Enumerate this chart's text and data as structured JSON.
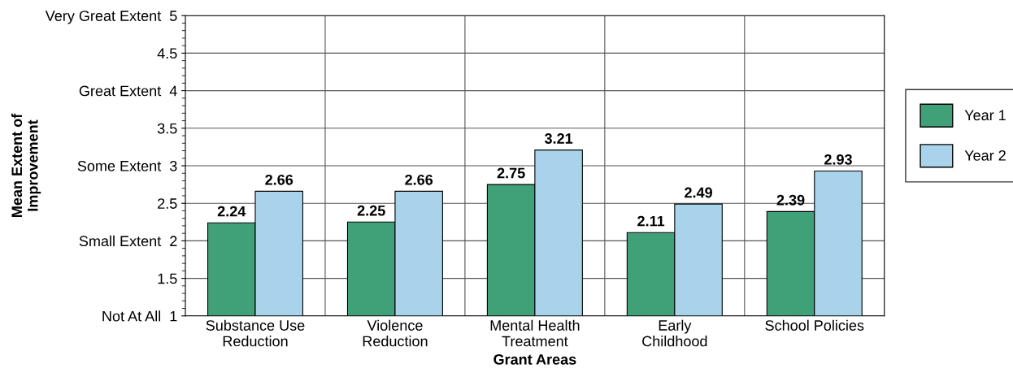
{
  "chart_data": {
    "type": "bar",
    "xlabel": "Grant Areas",
    "ylabel": "Mean Extent of\nImprovement",
    "categories": [
      "Substance Use\nReduction",
      "Violence\nReduction",
      "Mental Health\nTreatment",
      "Early\nChildhood",
      "School Policies"
    ],
    "series": [
      {
        "name": "Year 1",
        "color": "#40a077",
        "values": [
          2.24,
          2.25,
          2.75,
          2.11,
          2.39
        ]
      },
      {
        "name": "Year 2",
        "color": "#a9d3ea",
        "values": [
          2.66,
          2.66,
          3.21,
          2.49,
          2.93
        ]
      }
    ],
    "ylim": [
      1,
      5
    ],
    "yticks": [
      {
        "value": 1,
        "label": "Not At All  1"
      },
      1.5,
      {
        "value": 2,
        "label": "Small Extent  2"
      },
      2.5,
      {
        "value": 3,
        "label": "Some Extent  3"
      },
      3.5,
      {
        "value": 4,
        "label": "Great Extent  4"
      },
      4.5,
      {
        "value": 5,
        "label": "Very Great Extent  5"
      }
    ],
    "data_labels": true,
    "grid": true,
    "legend": "right"
  }
}
